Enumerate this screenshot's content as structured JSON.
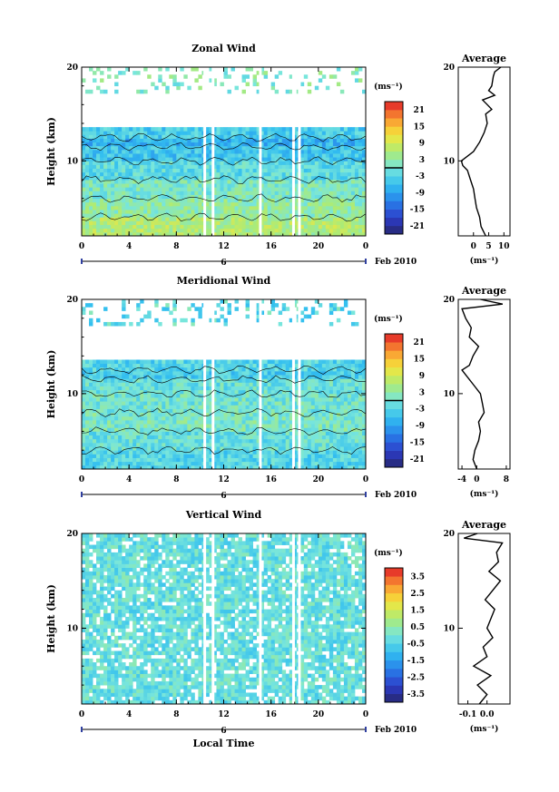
{
  "chart_data": [
    {
      "type": "heatmap",
      "title": "Zonal Wind",
      "ylabel": "Height (km)",
      "xlabel": "",
      "xlim": [
        0,
        24
      ],
      "ylim": [
        2,
        20
      ],
      "x_ticks": [
        "0",
        "4",
        "8",
        "12",
        "16",
        "20",
        "0"
      ],
      "y_ticks": [
        "10",
        "20"
      ],
      "date_marker": "6",
      "date_label": "Feb 2010",
      "colorbar": {
        "unit_label": "(ms⁻¹)",
        "range": [
          -24,
          24
        ],
        "ticks": [
          "21",
          "15",
          "9",
          "3",
          "-3",
          "-9",
          "-15",
          "-21"
        ],
        "marked_level": 0
      },
      "field": {
        "data_gap_above_km": 13.5,
        "sparse_values_above_km": 17.2,
        "gap_times_h": [
          10.4,
          11.1,
          15.1,
          17.9,
          18.4
        ],
        "layers": [
          {
            "from_km": 2.0,
            "to_km": 4.0,
            "value": 6
          },
          {
            "from_km": 4.0,
            "to_km": 6.0,
            "value": 3
          },
          {
            "from_km": 6.0,
            "to_km": 8.0,
            "value": 1
          },
          {
            "from_km": 8.0,
            "to_km": 10.0,
            "value": -2
          },
          {
            "from_km": 10.0,
            "to_km": 11.5,
            "value": -5
          },
          {
            "from_km": 11.5,
            "to_km": 12.5,
            "value": -7
          },
          {
            "from_km": 12.5,
            "to_km": 13.5,
            "value": -4
          }
        ],
        "upper_values": [
          2,
          1,
          3,
          0,
          5,
          -2
        ]
      },
      "profile": {
        "title": "Average",
        "ylabel": "",
        "xlabel": "(ms⁻¹)",
        "xlim": [
          -5,
          12
        ],
        "x_ticks": [
          "0",
          "5",
          "10"
        ],
        "y_ticks": [
          "10",
          "20"
        ],
        "height_km": [
          2,
          3,
          4,
          5,
          6,
          7,
          8,
          9,
          9.5,
          10,
          10.5,
          11,
          12,
          13,
          14,
          15,
          15.5,
          16,
          16.5,
          17,
          17.5,
          18,
          19,
          19.5,
          20
        ],
        "values": [
          4,
          2.5,
          2,
          1,
          0.5,
          0,
          -1,
          -2,
          -3.5,
          -4,
          -2,
          0,
          2,
          3.5,
          4.5,
          4,
          6,
          4.5,
          3,
          7,
          5,
          6,
          6.5,
          7,
          9
        ]
      }
    },
    {
      "type": "heatmap",
      "title": "Meridional Wind",
      "ylabel": "Height (km)",
      "xlabel": "",
      "xlim": [
        0,
        24
      ],
      "ylim": [
        2,
        20
      ],
      "x_ticks": [
        "0",
        "4",
        "8",
        "12",
        "16",
        "20",
        "0"
      ],
      "y_ticks": [
        "10",
        "20"
      ],
      "date_marker": "6",
      "date_label": "Feb 2010",
      "colorbar": {
        "unit_label": "(ms⁻¹)",
        "range": [
          -24,
          24
        ],
        "ticks": [
          "21",
          "15",
          "9",
          "3",
          "-3",
          "-9",
          "-15",
          "-21"
        ],
        "marked_level": 0
      },
      "field": {
        "data_gap_above_km": 13.5,
        "sparse_values_above_km": 17.2,
        "gap_times_h": [
          10.4,
          11.1,
          15.1,
          17.9,
          18.4
        ],
        "layers": [
          {
            "from_km": 2.0,
            "to_km": 4.0,
            "value": -3
          },
          {
            "from_km": 4.0,
            "to_km": 6.0,
            "value": -1
          },
          {
            "from_km": 6.0,
            "to_km": 8.0,
            "value": 1
          },
          {
            "from_km": 8.0,
            "to_km": 10.0,
            "value": 0
          },
          {
            "from_km": 10.0,
            "to_km": 11.5,
            "value": -1
          },
          {
            "from_km": 11.5,
            "to_km": 12.5,
            "value": -4
          },
          {
            "from_km": 12.5,
            "to_km": 13.5,
            "value": -3
          }
        ],
        "upper_values": [
          -2,
          -5,
          0,
          -3,
          2,
          -6
        ]
      },
      "profile": {
        "title": "Average",
        "ylabel": "",
        "xlabel": "(ms⁻¹)",
        "xlim": [
          -5,
          9
        ],
        "x_ticks": [
          "-4",
          "0",
          "8"
        ],
        "y_ticks": [
          "10",
          "20"
        ],
        "height_km": [
          2,
          3,
          4,
          5,
          6,
          7,
          8,
          9,
          10,
          11,
          12,
          12.5,
          13,
          14,
          15,
          16,
          17,
          18,
          19,
          19.5,
          20
        ],
        "values": [
          0,
          -1,
          -0.5,
          0.5,
          1,
          0.5,
          2,
          1.5,
          1,
          -1,
          -3,
          -4,
          -2,
          -1,
          0.5,
          -2,
          -1.5,
          -3,
          -4,
          7,
          1
        ]
      }
    },
    {
      "type": "heatmap",
      "title": "Vertical Wind",
      "ylabel": "Height (km)",
      "xlabel": "Local Time",
      "xlim": [
        0,
        24
      ],
      "ylim": [
        2,
        20
      ],
      "x_ticks": [
        "0",
        "4",
        "8",
        "12",
        "16",
        "20",
        "0"
      ],
      "y_ticks": [
        "10",
        "20"
      ],
      "date_marker": "6",
      "date_label": "Feb 2010",
      "colorbar": {
        "unit_label": "(ms⁻¹)",
        "range": [
          -4,
          4
        ],
        "ticks": [
          "3.5",
          "2.5",
          "1.5",
          "0.5",
          "-0.5",
          "-1.5",
          "-2.5",
          "-3.5"
        ],
        "marked_level": null
      },
      "field": {
        "data_gap_above_km": 20,
        "sparse_values_above_km": 20,
        "gap_times_h": [
          10.4,
          11.1,
          15.1,
          17.9,
          18.4
        ],
        "layers": [
          {
            "from_km": 2.0,
            "to_km": 20.0,
            "value": -0.2
          }
        ],
        "upper_values": []
      },
      "profile": {
        "title": "Average",
        "ylabel": "",
        "xlabel": "(ms⁻¹)",
        "xlim": [
          -0.15,
          0.12
        ],
        "x_ticks": [
          "-0.1",
          "0.0"
        ],
        "y_ticks": [
          "10",
          "20"
        ],
        "height_km": [
          2,
          3,
          4,
          5,
          6,
          7,
          8,
          9,
          10,
          11,
          12,
          13,
          14,
          15,
          16,
          17,
          18,
          19,
          19.5,
          20
        ],
        "values": [
          -0.04,
          0.0,
          -0.05,
          0.02,
          -0.07,
          0.0,
          -0.02,
          0.03,
          0.0,
          0.02,
          0.04,
          -0.01,
          0.03,
          0.07,
          0.01,
          0.06,
          0.05,
          0.08,
          -0.12,
          -0.05
        ]
      }
    }
  ],
  "xaxis_title": "Local Time"
}
